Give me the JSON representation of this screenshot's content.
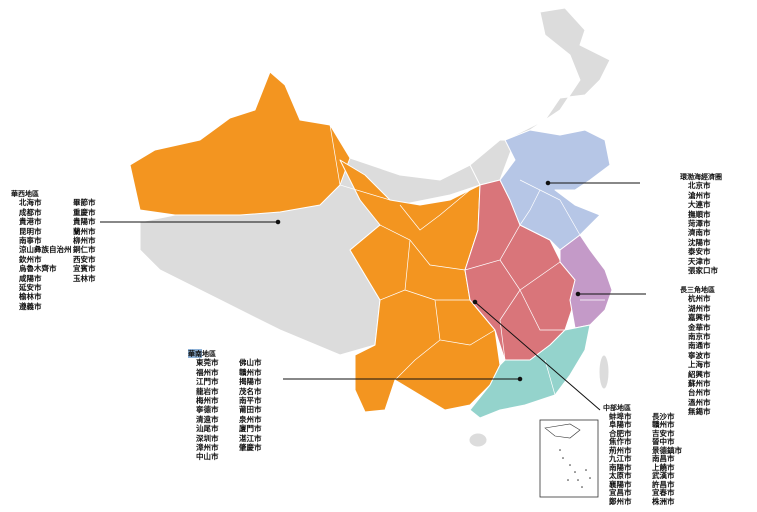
{
  "colors": {
    "base": "#dcdcdc",
    "west": "#f39520",
    "central": "#d9757a",
    "bohai": "#b6c6e6",
    "yangtze": "#c49ac8",
    "south": "#94d3cc"
  },
  "regions": {
    "west": {
      "title": "華西地區",
      "col1": [
        "北海市",
        "成都市",
        "貴港市",
        "昆明市",
        "南寧市",
        "涼山彝族自治州",
        "欽州市",
        "烏魯木齊市",
        "咸陽市",
        "延安市",
        "榆林市",
        "遵義市"
      ],
      "col2": [
        "畢節市",
        "重慶市",
        "貴陽市",
        "蘭州市",
        "柳州市",
        "銅仁市",
        "西安市",
        "宜賓市",
        "玉林市"
      ]
    },
    "bohai": {
      "title": "環渤海經濟圈",
      "col1": [
        "北京市",
        "滄州市",
        "大連市",
        "撫順市",
        "菏澤市",
        "濟南市",
        "沈陽市",
        "泰安市",
        "天津市",
        "張家口市"
      ]
    },
    "yangtze": {
      "title": "長三角地區",
      "col1": [
        "杭州市",
        "湖州市",
        "嘉興市",
        "金華市",
        "南京市",
        "南通市",
        "寧波市",
        "上海市",
        "紹興市",
        "蘇州市",
        "台州市",
        "溫州市",
        "無錫市"
      ]
    },
    "south": {
      "title_hl": "華南",
      "title_rest": "地區",
      "col1": [
        "東莞市",
        "福州市",
        "江門市",
        "龍岩市",
        "梅州市",
        "寧德市",
        "清遠市",
        "汕尾市",
        "深圳市",
        "漳州市",
        "中山市"
      ],
      "col2": [
        "佛山市",
        "贛州市",
        "揭陽市",
        "茂名市",
        "南平市",
        "莆田市",
        "泉州市",
        "廈門市",
        "湛江市",
        "肇慶市"
      ]
    },
    "central": {
      "title": "中部地區",
      "col1": [
        "蚌埠市",
        "阜陽市",
        "合肥市",
        "焦作市",
        "荊州市",
        "九江市",
        "南陽市",
        "太原市",
        "襄陽市",
        "宜昌市",
        "鄭州市"
      ],
      "col2": [
        "長沙市",
        "贛州市",
        "吉安市",
        "晉中市",
        "景德鎮市",
        "南昌市",
        "上饒市",
        "武漢市",
        "許昌市",
        "宜春市",
        "株洲市"
      ]
    }
  }
}
